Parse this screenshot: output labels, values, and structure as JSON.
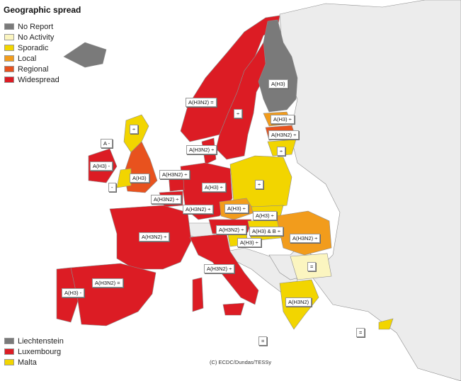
{
  "title": "Geographic spread",
  "legend": [
    {
      "label": "No Report",
      "color": "#7a7a7a"
    },
    {
      "label": "No Activity",
      "color": "#fbf5c0"
    },
    {
      "label": "Sporadic",
      "color": "#f2d500"
    },
    {
      "label": "Local",
      "color": "#f29c1c"
    },
    {
      "label": "Regional",
      "color": "#e8521e"
    },
    {
      "label": "Widespread",
      "color": "#dc1c24"
    }
  ],
  "small_countries": [
    {
      "label": "Liechtenstein",
      "color": "#7a7a7a"
    },
    {
      "label": "Luxembourg",
      "color": "#dc1c24"
    },
    {
      "label": "Malta",
      "color": "#f2d500"
    }
  ],
  "credit": "(C) ECDC/Dundas/TESSy",
  "labels": [
    {
      "id": "norway",
      "text": "A(H3N2) ="
    },
    {
      "id": "finland",
      "text": "A(H3)"
    },
    {
      "id": "sweden",
      "text": "÷"
    },
    {
      "id": "estonia",
      "text": "A(H3) ÷"
    },
    {
      "id": "latvia",
      "text": "A(H3N2) ÷"
    },
    {
      "id": "lithuania",
      "text": "÷"
    },
    {
      "id": "scotland",
      "text": "÷"
    },
    {
      "id": "denmark",
      "text": "A(H3N2) ÷"
    },
    {
      "id": "n-ireland",
      "text": "A -"
    },
    {
      "id": "ireland",
      "text": "A(H3) -"
    },
    {
      "id": "wales",
      "text": "-"
    },
    {
      "id": "england",
      "text": "A(H3)"
    },
    {
      "id": "netherlands",
      "text": "A(H3N2) ÷"
    },
    {
      "id": "germany",
      "text": "A(H3) ÷"
    },
    {
      "id": "poland",
      "text": "÷"
    },
    {
      "id": "belgium",
      "text": "A(H3N2) ÷"
    },
    {
      "id": "lux-lbl",
      "text": "A(H3N2) ÷"
    },
    {
      "id": "czech",
      "text": "A(H3) ÷"
    },
    {
      "id": "slovakia",
      "text": "A(H3) ÷"
    },
    {
      "id": "france",
      "text": "A(H3N2) ÷"
    },
    {
      "id": "austria",
      "text": "A(H3N2) ÷"
    },
    {
      "id": "hungary",
      "text": "A(H3) & B ÷"
    },
    {
      "id": "slovenia",
      "text": "A(H3) ÷"
    },
    {
      "id": "romania",
      "text": "A(H3N2) ÷"
    },
    {
      "id": "bulgaria",
      "text": "="
    },
    {
      "id": "italy",
      "text": "A(H3N2) ÷"
    },
    {
      "id": "spain",
      "text": "A(H3N2) ="
    },
    {
      "id": "portugal",
      "text": "A(H3) -"
    },
    {
      "id": "greece",
      "text": "A(H3N2)"
    },
    {
      "id": "cyprus",
      "text": "="
    },
    {
      "id": "malta-lbl",
      "text": "="
    }
  ]
}
